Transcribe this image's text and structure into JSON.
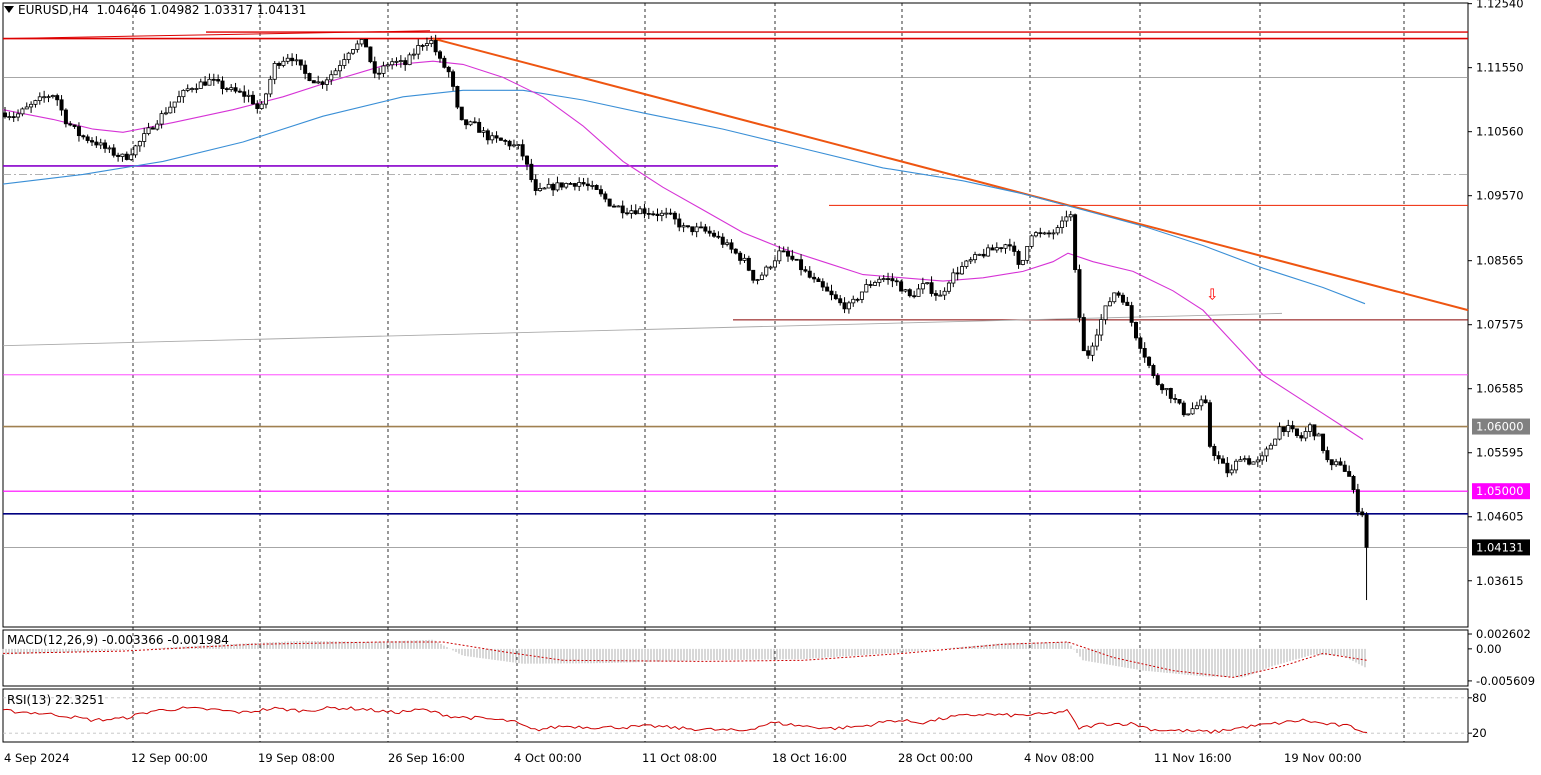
{
  "header": {
    "symbol": "EURUSD,H4",
    "ohlc": "1.04646 1.04982 1.03317 1.04131"
  },
  "colors": {
    "background": "#ffffff",
    "candle_up": "#ffffff",
    "candle_down": "#000000",
    "ma_fast": "#d633d6",
    "ma_slow": "#3a8fd6",
    "trendline": "#ee5511",
    "resistance": "#dd0000",
    "support_purple": "#8800cc",
    "level_1_06": "#a08050",
    "level_1_05": "#ff00ff",
    "level_blue": "#000080",
    "macd_signal": "#cc0000",
    "rsi": "#cc0000"
  },
  "chart_data": [
    {
      "type": "candlestick",
      "symbol": "EURUSD",
      "timeframe": "H4",
      "y_ticks": [
        "1.12540",
        "1.11550",
        "1.10560",
        "1.09570",
        "1.08565",
        "1.07575",
        "1.06585",
        "1.05595",
        "1.04605",
        "1.03615"
      ],
      "ylim": [
        1.029,
        1.1255
      ],
      "x_ticks": [
        "4 Sep 2024",
        "12 Sep 00:00",
        "19 Sep 08:00",
        "26 Sep 16:00",
        "4 Oct 00:00",
        "11 Oct 08:00",
        "18 Oct 16:00",
        "28 Oct 00:00",
        "4 Nov 08:00",
        "11 Nov 16:00",
        "19 Nov 00:00"
      ],
      "price_labels": [
        {
          "text": "1.06000",
          "value": 1.06,
          "bg": "#808080",
          "fg": "#ffffff"
        },
        {
          "text": "1.05000",
          "value": 1.05,
          "bg": "#ff00ff",
          "fg": "#ffffff"
        },
        {
          "text": "1.04131",
          "value": 1.04131,
          "bg": "#000000",
          "fg": "#ffffff"
        }
      ],
      "last_price": 1.04131,
      "close_path": [
        [
          0,
          1.1085
        ],
        [
          10,
          1.108
        ],
        [
          25,
          1.1095
        ],
        [
          40,
          1.111
        ],
        [
          50,
          1.1115
        ],
        [
          60,
          1.1075
        ],
        [
          75,
          1.105
        ],
        [
          90,
          1.104
        ],
        [
          105,
          1.1025
        ],
        [
          120,
          1.1015
        ],
        [
          135,
          1.104
        ],
        [
          150,
          1.107
        ],
        [
          165,
          1.1095
        ],
        [
          185,
          1.1125
        ],
        [
          205,
          1.1135
        ],
        [
          225,
          1.112
        ],
        [
          245,
          1.111
        ],
        [
          255,
          1.1085
        ],
        [
          270,
          1.116
        ],
        [
          285,
          1.1175
        ],
        [
          300,
          1.1145
        ],
        [
          315,
          1.113
        ],
        [
          330,
          1.115
        ],
        [
          345,
          1.1185
        ],
        [
          360,
          1.1195
        ],
        [
          370,
          1.114
        ],
        [
          385,
          1.1165
        ],
        [
          400,
          1.116
        ],
        [
          415,
          1.119
        ],
        [
          425,
          1.12
        ],
        [
          435,
          1.1165
        ],
        [
          445,
          1.1145
        ],
        [
          455,
          1.107
        ],
        [
          470,
          1.1065
        ],
        [
          485,
          1.1045
        ],
        [
          500,
          1.104
        ],
        [
          515,
          1.103
        ],
        [
          525,
          1.099
        ],
        [
          530,
          1.096
        ],
        [
          545,
          1.097
        ],
        [
          560,
          1.0975
        ],
        [
          575,
          1.0978
        ],
        [
          590,
          1.0965
        ],
        [
          605,
          1.0945
        ],
        [
          620,
          1.0935
        ],
        [
          635,
          1.0935
        ],
        [
          650,
          1.093
        ],
        [
          665,
          1.0925
        ],
        [
          680,
          1.0905
        ],
        [
          695,
          1.0905
        ],
        [
          710,
          1.0895
        ],
        [
          725,
          1.0875
        ],
        [
          740,
          1.0855
        ],
        [
          750,
          1.0825
        ],
        [
          760,
          1.084
        ],
        [
          775,
          1.087
        ],
        [
          790,
          1.0855
        ],
        [
          805,
          1.083
        ],
        [
          820,
          1.081
        ],
        [
          835,
          1.079
        ],
        [
          845,
          1.0785
        ],
        [
          860,
          1.0815
        ],
        [
          875,
          1.083
        ],
        [
          890,
          1.0825
        ],
        [
          905,
          1.08
        ],
        [
          920,
          1.082
        ],
        [
          935,
          1.08
        ],
        [
          945,
          1.083
        ],
        [
          960,
          1.085
        ],
        [
          975,
          1.0865
        ],
        [
          990,
          1.0875
        ],
        [
          1005,
          1.0885
        ],
        [
          1015,
          1.084
        ],
        [
          1025,
          1.09
        ],
        [
          1040,
          1.0895
        ],
        [
          1055,
          1.0905
        ],
        [
          1065,
          1.094
        ],
        [
          1072,
          1.08
        ],
        [
          1080,
          1.07
        ],
        [
          1090,
          1.074
        ],
        [
          1100,
          1.078
        ],
        [
          1110,
          1.081
        ],
        [
          1120,
          1.0795
        ],
        [
          1130,
          1.0745
        ],
        [
          1140,
          1.071
        ],
        [
          1150,
          1.067
        ],
        [
          1160,
          1.066
        ],
        [
          1170,
          1.064
        ],
        [
          1180,
          1.062
        ],
        [
          1190,
          1.063
        ],
        [
          1200,
          1.064
        ],
        [
          1205,
          1.057
        ],
        [
          1215,
          1.0545
        ],
        [
          1225,
          1.0525
        ],
        [
          1235,
          1.0555
        ],
        [
          1245,
          1.0545
        ],
        [
          1255,
          1.0545
        ],
        [
          1265,
          1.057
        ],
        [
          1275,
          1.06
        ],
        [
          1285,
          1.0595
        ],
        [
          1295,
          1.058
        ],
        [
          1305,
          1.06
        ],
        [
          1315,
          1.058
        ],
        [
          1325,
          1.0535
        ],
        [
          1335,
          1.0545
        ],
        [
          1345,
          1.052
        ],
        [
          1352,
          1.0475
        ],
        [
          1358,
          1.0465
        ],
        [
          1364,
          1.04131
        ]
      ],
      "ma_fast": [
        [
          0,
          1.109
        ],
        [
          50,
          1.1075
        ],
        [
          90,
          1.106
        ],
        [
          120,
          1.1055
        ],
        [
          170,
          1.107
        ],
        [
          230,
          1.109
        ],
        [
          280,
          1.111
        ],
        [
          330,
          1.1135
        ],
        [
          380,
          1.1158
        ],
        [
          430,
          1.1165
        ],
        [
          460,
          1.116
        ],
        [
          500,
          1.114
        ],
        [
          540,
          1.111
        ],
        [
          580,
          1.1065
        ],
        [
          620,
          1.101
        ],
        [
          660,
          1.097
        ],
        [
          700,
          1.0935
        ],
        [
          740,
          1.09
        ],
        [
          780,
          1.0875
        ],
        [
          820,
          1.0855
        ],
        [
          860,
          1.0835
        ],
        [
          900,
          1.083
        ],
        [
          940,
          1.0825
        ],
        [
          980,
          1.083
        ],
        [
          1020,
          1.084
        ],
        [
          1050,
          1.0855
        ],
        [
          1065,
          1.0868
        ],
        [
          1090,
          1.0855
        ],
        [
          1130,
          1.084
        ],
        [
          1170,
          1.081
        ],
        [
          1200,
          1.078
        ],
        [
          1230,
          1.073
        ],
        [
          1260,
          1.068
        ],
        [
          1290,
          1.065
        ],
        [
          1320,
          1.062
        ],
        [
          1360,
          1.058
        ]
      ],
      "ma_slow": [
        [
          0,
          1.0975
        ],
        [
          80,
          1.099
        ],
        [
          160,
          1.101
        ],
        [
          240,
          1.104
        ],
        [
          320,
          1.108
        ],
        [
          400,
          1.111
        ],
        [
          460,
          1.112
        ],
        [
          520,
          1.112
        ],
        [
          580,
          1.1105
        ],
        [
          640,
          1.1085
        ],
        [
          720,
          1.106
        ],
        [
          800,
          1.103
        ],
        [
          880,
          1.1
        ],
        [
          960,
          1.098
        ],
        [
          1020,
          1.096
        ],
        [
          1080,
          1.0935
        ],
        [
          1140,
          1.091
        ],
        [
          1200,
          1.088
        ],
        [
          1260,
          1.0845
        ],
        [
          1320,
          1.0815
        ],
        [
          1362,
          1.079
        ]
      ],
      "lines": [
        {
          "kind": "horizontal",
          "value": 1.12,
          "color": "#dd0000",
          "x_from": 0,
          "x_to": 1468,
          "width": 1.6
        },
        {
          "kind": "segment",
          "from": [
            203,
            1.121
          ],
          "to": [
            1468,
            1.121
          ],
          "color": "#dd0000",
          "width": 1.4
        },
        {
          "kind": "segment",
          "from": [
            0,
            1.12
          ],
          "to": [
            430,
            1.1212
          ],
          "color": "#dd0000",
          "width": 1
        },
        {
          "kind": "horizontal",
          "value": 1.114,
          "color": "#8a8a8a",
          "x_from": 0,
          "x_to": 1468,
          "width": 0.8
        },
        {
          "kind": "segment",
          "from": [
            0,
            1.1003
          ],
          "to": [
            778,
            1.1003
          ],
          "color": "#8800cc",
          "width": 1.6
        },
        {
          "kind": "dashdot",
          "value": 1.099,
          "color": "#999999",
          "x_from": 0,
          "x_to": 1468,
          "width": 0.8
        },
        {
          "kind": "segment",
          "from": [
            826,
            1.0942
          ],
          "to": [
            1468,
            1.0942
          ],
          "color": "#ee2200",
          "width": 1
        },
        {
          "kind": "segment",
          "from": [
            430,
            1.12
          ],
          "to": [
            1468,
            1.078
          ],
          "color": "#ee5511",
          "width": 2
        },
        {
          "kind": "segment",
          "from": [
            730,
            1.0765
          ],
          "to": [
            1468,
            1.0765
          ],
          "color": "#880000",
          "width": 1
        },
        {
          "kind": "segment",
          "from": [
            0,
            1.0725
          ],
          "to": [
            1282,
            1.0775
          ],
          "color": "#aaaaaa",
          "width": 0.9
        },
        {
          "kind": "horizontal",
          "value": 1.068,
          "color": "#ff33ff",
          "x_from": 0,
          "x_to": 1468,
          "width": 0.8
        },
        {
          "kind": "horizontal",
          "value": 1.06,
          "color": "#a08050",
          "x_from": 0,
          "x_to": 1468,
          "width": 1.6
        },
        {
          "kind": "horizontal",
          "value": 1.05,
          "color": "#ff00ff",
          "x_from": 0,
          "x_to": 1468,
          "width": 1.2
        },
        {
          "kind": "horizontal",
          "value": 1.0465,
          "color": "#000080",
          "x_from": 0,
          "x_to": 1468,
          "width": 1.6
        },
        {
          "kind": "horizontal",
          "value": 1.04131,
          "color": "#888888",
          "x_from": 0,
          "x_to": 1468,
          "width": 0.8
        }
      ],
      "arrow_marker": {
        "x": 1210,
        "value": 1.079,
        "symbol": "⇩",
        "color": "#ff0000"
      }
    },
    {
      "type": "histogram",
      "name": "MACD",
      "label": "MACD(12,26,9) -0.003366 -0.001984",
      "y_ticks": [
        "0.002602",
        "0.00",
        "-0.005609"
      ],
      "ylim": [
        -0.0065,
        0.0033
      ],
      "main_path": [
        [
          0,
          -0.001
        ],
        [
          100,
          -0.0004
        ],
        [
          200,
          0.0006
        ],
        [
          300,
          0.0014
        ],
        [
          370,
          0.0012
        ],
        [
          430,
          0.0016
        ],
        [
          460,
          -0.0012
        ],
        [
          520,
          -0.0026
        ],
        [
          600,
          -0.0025
        ],
        [
          700,
          -0.002
        ],
        [
          800,
          -0.0018
        ],
        [
          900,
          -0.0006
        ],
        [
          1000,
          0.001
        ],
        [
          1065,
          0.0012
        ],
        [
          1080,
          -0.002
        ],
        [
          1140,
          -0.0038
        ],
        [
          1200,
          -0.0048
        ],
        [
          1240,
          -0.005
        ],
        [
          1270,
          -0.003
        ],
        [
          1310,
          -0.001
        ],
        [
          1340,
          -0.0012
        ],
        [
          1364,
          -0.0034
        ]
      ],
      "signal_path": [
        [
          0,
          -0.0008
        ],
        [
          120,
          -0.0004
        ],
        [
          250,
          0.0008
        ],
        [
          380,
          0.0012
        ],
        [
          440,
          0.0012
        ],
        [
          500,
          -0.0005
        ],
        [
          560,
          -0.002
        ],
        [
          700,
          -0.0022
        ],
        [
          800,
          -0.002
        ],
        [
          900,
          -0.0008
        ],
        [
          1000,
          0.0008
        ],
        [
          1065,
          0.0012
        ],
        [
          1110,
          -0.0015
        ],
        [
          1170,
          -0.0038
        ],
        [
          1230,
          -0.005
        ],
        [
          1280,
          -0.003
        ],
        [
          1320,
          -0.0008
        ],
        [
          1364,
          -0.002
        ]
      ]
    },
    {
      "type": "line",
      "name": "RSI",
      "label": "RSI(13) 22.3251",
      "y_ticks": [
        "80",
        "20"
      ],
      "ylim": [
        5,
        95
      ],
      "levels": [
        80,
        20
      ],
      "values": [
        [
          0,
          58
        ],
        [
          30,
          55
        ],
        [
          60,
          50
        ],
        [
          90,
          42
        ],
        [
          120,
          45
        ],
        [
          150,
          58
        ],
        [
          180,
          62
        ],
        [
          210,
          60
        ],
        [
          240,
          55
        ],
        [
          270,
          62
        ],
        [
          300,
          58
        ],
        [
          330,
          63
        ],
        [
          360,
          61
        ],
        [
          390,
          55
        ],
        [
          420,
          60
        ],
        [
          450,
          48
        ],
        [
          480,
          45
        ],
        [
          510,
          40
        ],
        [
          530,
          25
        ],
        [
          560,
          32
        ],
        [
          590,
          30
        ],
        [
          620,
          30
        ],
        [
          650,
          32
        ],
        [
          680,
          28
        ],
        [
          710,
          26
        ],
        [
          740,
          24
        ],
        [
          770,
          38
        ],
        [
          800,
          32
        ],
        [
          830,
          28
        ],
        [
          860,
          32
        ],
        [
          890,
          42
        ],
        [
          920,
          38
        ],
        [
          950,
          48
        ],
        [
          980,
          52
        ],
        [
          1010,
          50
        ],
        [
          1040,
          52
        ],
        [
          1065,
          58
        ],
        [
          1075,
          28
        ],
        [
          1100,
          36
        ],
        [
          1130,
          36
        ],
        [
          1150,
          26
        ],
        [
          1180,
          24
        ],
        [
          1210,
          22
        ],
        [
          1240,
          30
        ],
        [
          1270,
          36
        ],
        [
          1300,
          42
        ],
        [
          1320,
          36
        ],
        [
          1345,
          32
        ],
        [
          1364,
          22
        ]
      ]
    }
  ]
}
